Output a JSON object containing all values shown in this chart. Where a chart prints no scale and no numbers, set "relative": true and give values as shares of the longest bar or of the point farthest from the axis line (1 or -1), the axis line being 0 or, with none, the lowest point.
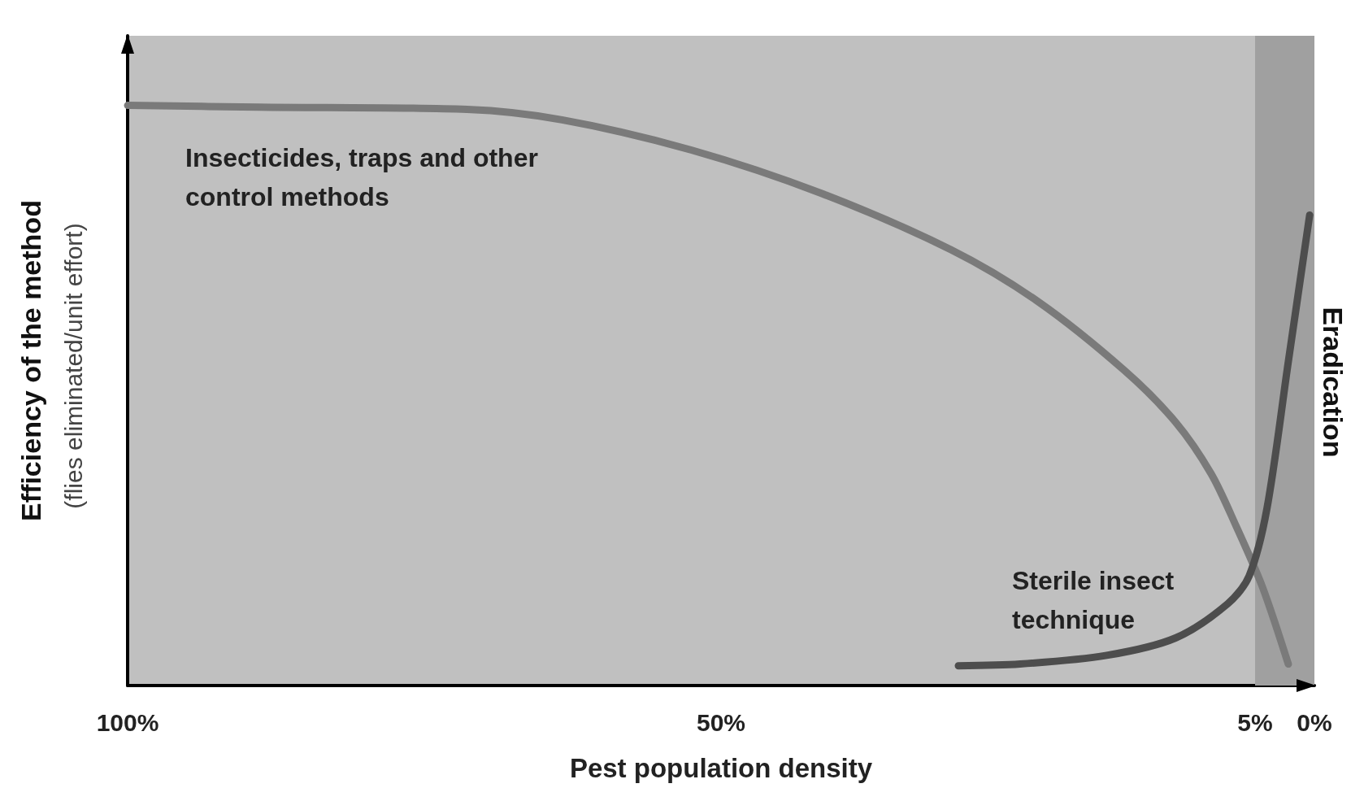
{
  "chart_data": {
    "type": "line",
    "relative": true,
    "xlabel": "Pest population density",
    "ylabel": "Efficiency of the method",
    "annotations": [
      "(flies eliminated/unit effort)"
    ],
    "xlim": [
      100,
      0
    ],
    "xticks": [
      {
        "value": 100,
        "label": "100%"
      },
      {
        "value": 50,
        "label": "50%"
      },
      {
        "value": 5,
        "label": "5%"
      },
      {
        "value": 0,
        "label": "0%"
      }
    ],
    "series": [
      {
        "name": "Insecticides, traps and other control methods",
        "color": "#7a7a7a",
        "x": [
          100,
          88.9,
          71.4,
          63.4,
          52.5,
          41.5,
          30.6,
          23.3,
          16.0,
          11.7,
          8.7,
          6.6,
          4.4,
          2.2
        ],
        "values": [
          1.0,
          0.997,
          0.993,
          0.975,
          0.923,
          0.848,
          0.751,
          0.662,
          0.543,
          0.454,
          0.365,
          0.275,
          0.171,
          0.037
        ]
      },
      {
        "name": "Sterile insect technique",
        "color": "#4d4d4d",
        "x": [
          30.0,
          24.8,
          17.5,
          11.7,
          7.3,
          5.5,
          4.0,
          2.2,
          0.4
        ],
        "values": [
          0.034,
          0.037,
          0.052,
          0.082,
          0.141,
          0.189,
          0.305,
          0.558,
          0.811
        ]
      }
    ],
    "bands": [
      {
        "axis": "x",
        "from": 5,
        "to": 0,
        "label": "Eradication",
        "color": "#a0a0a0"
      }
    ],
    "grid": false,
    "legend": false,
    "line_style": "solid"
  }
}
